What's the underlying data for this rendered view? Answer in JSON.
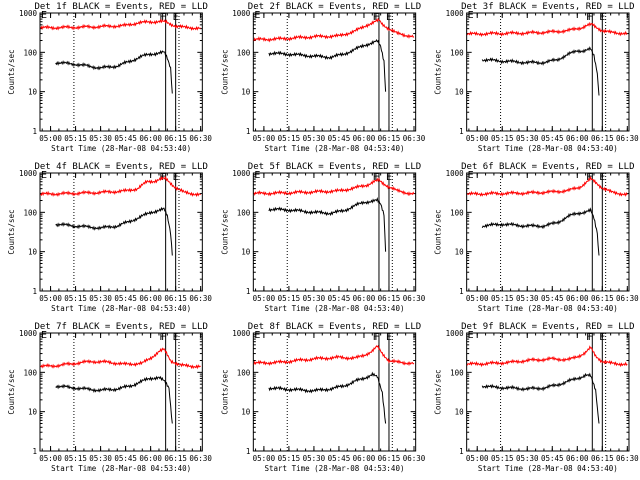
{
  "shared": {
    "xlabel": "Start Time (28-Mar-08 04:53:40)",
    "ylabel": "Counts/sec",
    "x_tick_labels": [
      "05:00",
      "05:15",
      "05:30",
      "05:45",
      "06:00",
      "06:15",
      "06:30"
    ],
    "y_tick_labels": [
      "1",
      "10",
      "100",
      "1000"
    ],
    "yscale": "log",
    "ylim": [
      1,
      1000
    ],
    "xlim": [
      "04:53:40",
      "06:31:00"
    ],
    "colors": {
      "events": "#000000",
      "lld": "#ff0000"
    },
    "dotted_lines_at": [
      "05:14",
      "06:17"
    ],
    "solid_lines_at": [
      "06:09",
      "06:15"
    ],
    "markers": [
      {
        "at": "06:07",
        "label": "F"
      },
      {
        "at": "06:08",
        "label": "F"
      },
      {
        "at": "06:15",
        "label": "E"
      }
    ]
  },
  "chart_data": [
    {
      "type": "line",
      "title": "Det 1f BLACK = Events, RED = LLD",
      "series": [
        {
          "color": "#ff0000",
          "x": [
            "04:54",
            "05:10",
            "05:30",
            "05:45",
            "05:52",
            "06:02",
            "06:06",
            "06:09",
            "06:11",
            "06:15",
            "06:20",
            "06:30"
          ],
          "y": [
            420,
            430,
            450,
            480,
            560,
            600,
            610,
            590,
            540,
            470,
            430,
            410
          ]
        },
        {
          "color": "#000000",
          "x": [
            "05:03",
            "05:15",
            "05:30",
            "05:40",
            "05:48",
            "05:55",
            "06:00",
            "06:04",
            "06:08",
            "06:10",
            "06:12",
            "06:13"
          ],
          "y": [
            55,
            50,
            40,
            45,
            60,
            80,
            90,
            95,
            100,
            70,
            40,
            9
          ]
        }
      ]
    },
    {
      "type": "line",
      "title": "Det 2f BLACK = Events, RED = LLD",
      "series": [
        {
          "color": "#ff0000",
          "x": [
            "04:54",
            "05:10",
            "05:30",
            "05:45",
            "05:55",
            "06:02",
            "06:07",
            "06:09",
            "06:11",
            "06:15",
            "06:20",
            "06:30"
          ],
          "y": [
            210,
            220,
            250,
            260,
            350,
            500,
            600,
            650,
            520,
            400,
            300,
            250
          ]
        },
        {
          "color": "#000000",
          "x": [
            "05:03",
            "05:15",
            "05:30",
            "05:40",
            "05:48",
            "05:55",
            "06:00",
            "06:04",
            "06:08",
            "06:10",
            "06:12",
            "06:13"
          ],
          "y": [
            95,
            90,
            80,
            75,
            90,
            120,
            150,
            170,
            190,
            140,
            60,
            10
          ]
        }
      ]
    },
    {
      "type": "line",
      "title": "Det 3f BLACK = Events, RED = LLD",
      "series": [
        {
          "color": "#ff0000",
          "x": [
            "04:54",
            "05:10",
            "05:30",
            "05:45",
            "05:55",
            "06:02",
            "06:06",
            "06:09",
            "06:11",
            "06:15",
            "06:20",
            "06:30"
          ],
          "y": [
            290,
            300,
            310,
            330,
            360,
            420,
            480,
            510,
            440,
            360,
            320,
            300
          ]
        },
        {
          "color": "#000000",
          "x": [
            "05:03",
            "05:15",
            "05:30",
            "05:40",
            "05:48",
            "05:55",
            "06:00",
            "06:04",
            "06:08",
            "06:10",
            "06:12",
            "06:13"
          ],
          "y": [
            65,
            60,
            55,
            55,
            65,
            90,
            110,
            110,
            120,
            80,
            30,
            8
          ]
        }
      ]
    },
    {
      "type": "line",
      "title": "Det 4f BLACK = Events, RED = LLD",
      "series": [
        {
          "color": "#ff0000",
          "x": [
            "04:54",
            "05:10",
            "05:30",
            "05:45",
            "05:52",
            "05:58",
            "06:02",
            "06:06",
            "06:09",
            "06:11",
            "06:15",
            "06:20",
            "06:30"
          ],
          "y": [
            290,
            300,
            320,
            350,
            400,
            600,
            620,
            700,
            710,
            600,
            430,
            320,
            280
          ]
        },
        {
          "color": "#000000",
          "x": [
            "05:03",
            "05:15",
            "05:30",
            "05:40",
            "05:48",
            "05:55",
            "06:00",
            "06:04",
            "06:08",
            "06:10",
            "06:12",
            "06:13"
          ],
          "y": [
            50,
            45,
            40,
            45,
            60,
            80,
            100,
            110,
            120,
            80,
            30,
            8
          ]
        }
      ]
    },
    {
      "type": "line",
      "title": "Det 5f BLACK = Events, RED = LLD",
      "series": [
        {
          "color": "#ff0000",
          "x": [
            "04:54",
            "05:10",
            "05:30",
            "05:45",
            "05:55",
            "06:02",
            "06:06",
            "06:09",
            "06:11",
            "06:15",
            "06:20",
            "06:30"
          ],
          "y": [
            300,
            310,
            330,
            350,
            420,
            500,
            600,
            650,
            560,
            450,
            350,
            290
          ]
        },
        {
          "color": "#000000",
          "x": [
            "05:03",
            "05:15",
            "05:30",
            "05:40",
            "05:48",
            "05:55",
            "06:00",
            "06:04",
            "06:08",
            "06:10",
            "06:12",
            "06:13"
          ],
          "y": [
            120,
            115,
            100,
            95,
            110,
            150,
            180,
            190,
            200,
            160,
            90,
            10
          ]
        }
      ]
    },
    {
      "type": "line",
      "title": "Det 6f BLACK = Events, RED = LLD",
      "series": [
        {
          "color": "#ff0000",
          "x": [
            "04:54",
            "05:10",
            "05:30",
            "05:45",
            "05:55",
            "06:02",
            "06:06",
            "06:08",
            "06:11",
            "06:15",
            "06:20",
            "06:30"
          ],
          "y": [
            290,
            300,
            310,
            330,
            360,
            450,
            600,
            700,
            580,
            420,
            330,
            280
          ]
        },
        {
          "color": "#000000",
          "x": [
            "05:03",
            "05:15",
            "05:30",
            "05:40",
            "05:48",
            "05:55",
            "06:00",
            "06:04",
            "06:08",
            "06:10",
            "06:12",
            "06:13"
          ],
          "y": [
            45,
            50,
            45,
            45,
            55,
            80,
            95,
            100,
            110,
            70,
            30,
            8
          ]
        }
      ]
    },
    {
      "type": "line",
      "title": "Det 7f BLACK = Events, RED = LLD",
      "series": [
        {
          "color": "#ff0000",
          "x": [
            "04:54",
            "05:05",
            "05:15",
            "05:25",
            "05:35",
            "05:45",
            "05:55",
            "06:00",
            "06:05",
            "06:08",
            "06:12",
            "06:18",
            "06:30"
          ],
          "y": [
            140,
            150,
            170,
            190,
            180,
            160,
            170,
            230,
            340,
            380,
            200,
            150,
            140
          ]
        },
        {
          "color": "#000000",
          "x": [
            "05:03",
            "05:10",
            "05:20",
            "05:30",
            "05:40",
            "05:48",
            "05:55",
            "06:00",
            "06:05",
            "06:08",
            "06:11",
            "06:13"
          ],
          "y": [
            45,
            42,
            38,
            35,
            38,
            45,
            60,
            70,
            75,
            60,
            40,
            5
          ]
        }
      ]
    },
    {
      "type": "line",
      "title": "Det 8f BLACK = Events, RED = LLD",
      "series": [
        {
          "color": "#ff0000",
          "x": [
            "04:54",
            "05:10",
            "05:20",
            "05:30",
            "05:45",
            "05:55",
            "06:00",
            "06:05",
            "06:08",
            "06:11",
            "06:15",
            "06:20",
            "06:30"
          ],
          "y": [
            170,
            180,
            200,
            220,
            240,
            230,
            270,
            350,
            450,
            300,
            200,
            180,
            170
          ]
        },
        {
          "color": "#000000",
          "x": [
            "05:03",
            "05:10",
            "05:20",
            "05:30",
            "05:40",
            "05:48",
            "05:55",
            "06:00",
            "06:05",
            "06:08",
            "06:11",
            "06:13"
          ],
          "y": [
            40,
            38,
            36,
            34,
            38,
            45,
            60,
            70,
            90,
            75,
            30,
            5
          ]
        }
      ]
    },
    {
      "type": "line",
      "title": "Det 9f BLACK = Events, RED = LLD",
      "series": [
        {
          "color": "#ff0000",
          "x": [
            "04:54",
            "05:10",
            "05:20",
            "05:30",
            "05:45",
            "05:55",
            "06:00",
            "06:05",
            "06:08",
            "06:11",
            "06:15",
            "06:20",
            "06:30"
          ],
          "y": [
            160,
            170,
            180,
            200,
            220,
            210,
            250,
            320,
            420,
            260,
            190,
            170,
            160
          ]
        },
        {
          "color": "#000000",
          "x": [
            "05:03",
            "05:10",
            "05:20",
            "05:30",
            "05:40",
            "05:48",
            "05:55",
            "06:00",
            "06:05",
            "06:08",
            "06:11",
            "06:13"
          ],
          "y": [
            45,
            42,
            40,
            38,
            40,
            48,
            60,
            70,
            85,
            80,
            35,
            5
          ]
        }
      ]
    }
  ]
}
